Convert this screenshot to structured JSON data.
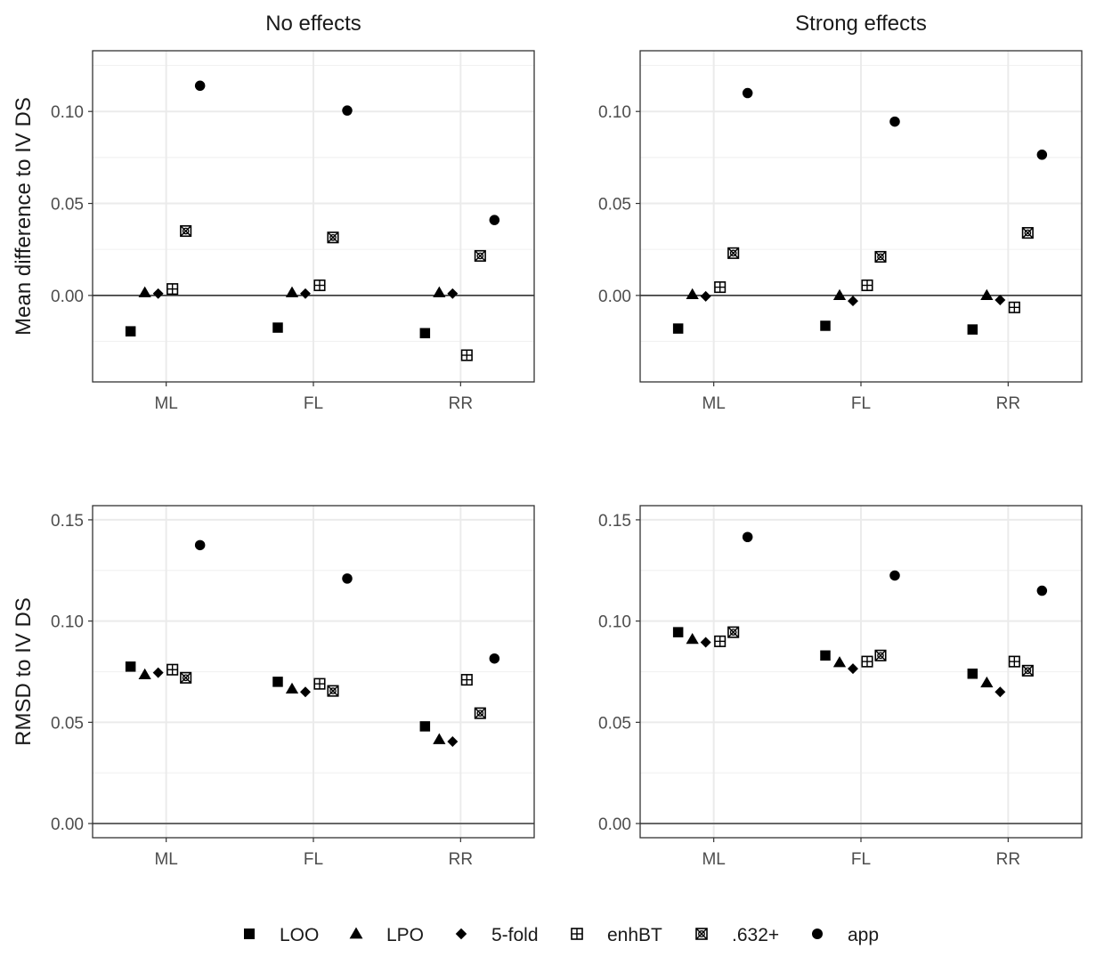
{
  "legend": {
    "entries": [
      {
        "key": "LOO",
        "label": "LOO",
        "shape": "square"
      },
      {
        "key": "LPO",
        "label": "LPO",
        "shape": "triangle"
      },
      {
        "key": "fivefold",
        "label": "5-fold",
        "shape": "diamond"
      },
      {
        "key": "enhBT",
        "label": "enhBT",
        "shape": "square-plus"
      },
      {
        "key": "b632",
        "label": ".632+",
        "shape": "square-cross"
      },
      {
        "key": "app",
        "label": "app",
        "shape": "circle"
      }
    ]
  },
  "chart_data": [
    {
      "type": "scatter",
      "title": "No effects",
      "xlabel": "",
      "ylabel": "Mean difference to IV DS",
      "categories": [
        "ML",
        "FL",
        "RR"
      ],
      "ylim": [
        -0.047,
        0.133
      ],
      "yticks": [
        0.0,
        0.05,
        0.1
      ],
      "ytick_labels": [
        "0.00",
        "0.05",
        "0.10"
      ],
      "hline": 0,
      "grid": true,
      "series": [
        {
          "name": "LOO",
          "values": [
            -0.0195,
            -0.0175,
            -0.0205
          ]
        },
        {
          "name": "LPO",
          "values": [
            0.0015,
            0.0015,
            0.0015
          ]
        },
        {
          "name": "5-fold",
          "values": [
            0.001,
            0.001,
            0.001
          ]
        },
        {
          "name": "enhBT",
          "values": [
            0.0035,
            0.0055,
            -0.0325
          ]
        },
        {
          "name": ".632+",
          "values": [
            0.035,
            0.0315,
            0.0215
          ]
        },
        {
          "name": "app",
          "values": [
            0.114,
            0.1005,
            0.041
          ]
        }
      ]
    },
    {
      "type": "scatter",
      "title": "Strong effects",
      "xlabel": "",
      "ylabel": "",
      "categories": [
        "ML",
        "FL",
        "RR"
      ],
      "ylim": [
        -0.047,
        0.133
      ],
      "yticks": [
        0.0,
        0.05,
        0.1
      ],
      "ytick_labels": [
        "0.00",
        "0.05",
        "0.10"
      ],
      "hline": 0,
      "grid": true,
      "series": [
        {
          "name": "LOO",
          "values": [
            -0.018,
            -0.0165,
            -0.0185
          ]
        },
        {
          "name": "LPO",
          "values": [
            0.0005,
            0.0,
            0.0
          ]
        },
        {
          "name": "5-fold",
          "values": [
            -0.0005,
            -0.003,
            -0.0025
          ]
        },
        {
          "name": "enhBT",
          "values": [
            0.0045,
            0.0055,
            -0.0065
          ]
        },
        {
          "name": ".632+",
          "values": [
            0.023,
            0.021,
            0.034
          ]
        },
        {
          "name": "app",
          "values": [
            0.11,
            0.0945,
            0.0765
          ]
        }
      ]
    },
    {
      "type": "scatter",
      "title": "",
      "xlabel": "",
      "ylabel": "RMSD to IV DS",
      "categories": [
        "ML",
        "FL",
        "RR"
      ],
      "ylim": [
        -0.007,
        0.157
      ],
      "yticks": [
        0.0,
        0.05,
        0.1,
        0.15
      ],
      "ytick_labels": [
        "0.00",
        "0.05",
        "0.10",
        "0.15"
      ],
      "hline": 0,
      "grid": true,
      "series": [
        {
          "name": "LOO",
          "values": [
            0.0775,
            0.07,
            0.048
          ]
        },
        {
          "name": "LPO",
          "values": [
            0.0735,
            0.0665,
            0.0415
          ]
        },
        {
          "name": "5-fold",
          "values": [
            0.0745,
            0.065,
            0.0405
          ]
        },
        {
          "name": "enhBT",
          "values": [
            0.076,
            0.069,
            0.071
          ]
        },
        {
          "name": ".632+",
          "values": [
            0.072,
            0.0655,
            0.0545
          ]
        },
        {
          "name": "app",
          "values": [
            0.1375,
            0.121,
            0.0815
          ]
        }
      ]
    },
    {
      "type": "scatter",
      "title": "",
      "xlabel": "",
      "ylabel": "",
      "categories": [
        "ML",
        "FL",
        "RR"
      ],
      "ylim": [
        -0.007,
        0.157
      ],
      "yticks": [
        0.0,
        0.05,
        0.1,
        0.15
      ],
      "ytick_labels": [
        "0.00",
        "0.05",
        "0.10",
        "0.15"
      ],
      "hline": 0,
      "grid": true,
      "series": [
        {
          "name": "LOO",
          "values": [
            0.0945,
            0.083,
            0.074
          ]
        },
        {
          "name": "LPO",
          "values": [
            0.091,
            0.0795,
            0.0695
          ]
        },
        {
          "name": "5-fold",
          "values": [
            0.0895,
            0.0765,
            0.065
          ]
        },
        {
          "name": "enhBT",
          "values": [
            0.09,
            0.08,
            0.08
          ]
        },
        {
          "name": ".632+",
          "values": [
            0.0945,
            0.083,
            0.0755
          ]
        },
        {
          "name": "app",
          "values": [
            0.1415,
            0.1225,
            0.115
          ]
        }
      ]
    }
  ]
}
